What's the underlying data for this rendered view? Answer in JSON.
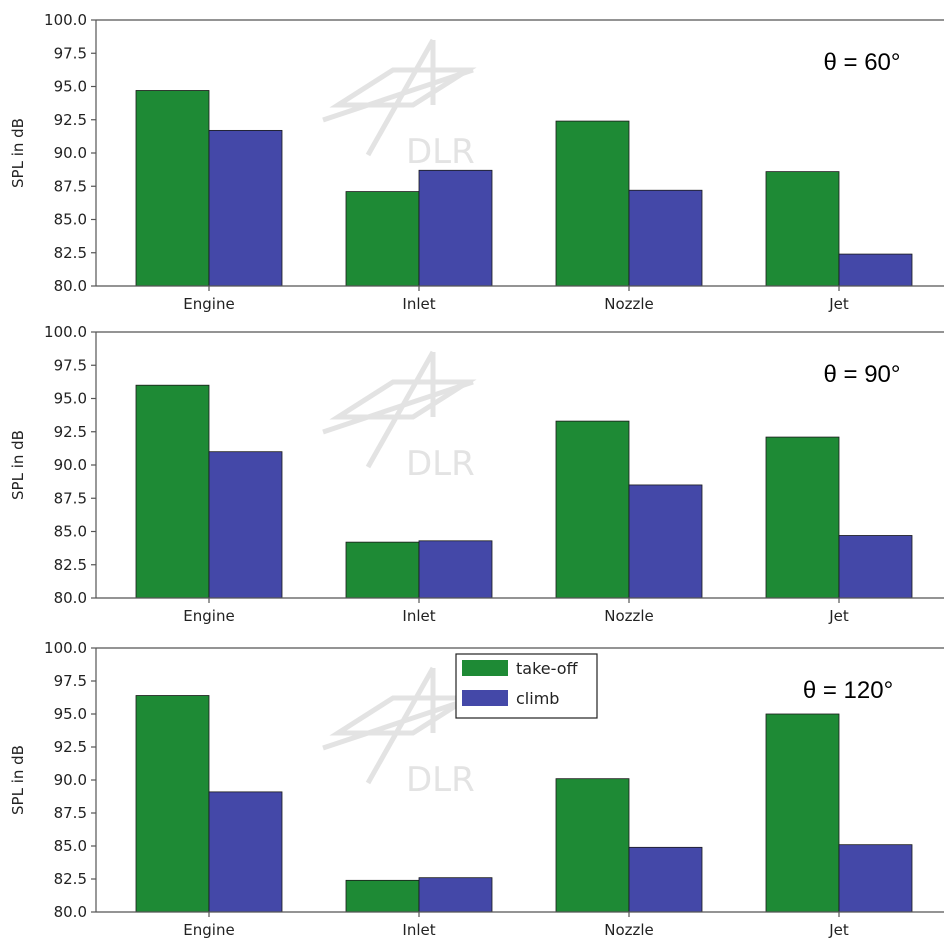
{
  "chart_data": [
    {
      "type": "bar",
      "annotation": "θ =  60°",
      "ylabel": "SPL in dB",
      "categories": [
        "Engine",
        "Inlet",
        "Nozzle",
        "Jet"
      ],
      "ylim": [
        80.0,
        100.0
      ],
      "yticks": [
        "80.0",
        "82.5",
        "85.0",
        "87.5",
        "90.0",
        "92.5",
        "95.0",
        "97.5",
        "100.0"
      ],
      "series": [
        {
          "name": "take-off",
          "values": [
            94.7,
            87.1,
            92.4,
            88.6
          ]
        },
        {
          "name": "climb",
          "values": [
            91.7,
            88.7,
            87.2,
            82.4
          ]
        }
      ],
      "watermark": "DLR",
      "legend": null
    },
    {
      "type": "bar",
      "annotation": "θ =  90°",
      "ylabel": "SPL in dB",
      "categories": [
        "Engine",
        "Inlet",
        "Nozzle",
        "Jet"
      ],
      "ylim": [
        80.0,
        100.0
      ],
      "yticks": [
        "80.0",
        "82.5",
        "85.0",
        "87.5",
        "90.0",
        "92.5",
        "95.0",
        "97.5",
        "100.0"
      ],
      "series": [
        {
          "name": "take-off",
          "values": [
            96.0,
            84.2,
            93.3,
            92.1
          ]
        },
        {
          "name": "climb",
          "values": [
            91.0,
            84.3,
            88.5,
            84.7
          ]
        }
      ],
      "watermark": "DLR",
      "legend": null
    },
    {
      "type": "bar",
      "annotation": "θ =  120°",
      "ylabel": "SPL in dB",
      "categories": [
        "Engine",
        "Inlet",
        "Nozzle",
        "Jet"
      ],
      "ylim": [
        80.0,
        100.0
      ],
      "yticks": [
        "80.0",
        "82.5",
        "85.0",
        "87.5",
        "90.0",
        "92.5",
        "95.0",
        "97.5",
        "100.0"
      ],
      "series": [
        {
          "name": "take-off",
          "values": [
            96.4,
            82.4,
            90.1,
            95.0
          ]
        },
        {
          "name": "climb",
          "values": [
            89.1,
            82.6,
            84.9,
            85.1
          ]
        }
      ],
      "watermark": "DLR",
      "legend": "upper-center"
    }
  ],
  "colors": {
    "take-off": "#1e8a35",
    "climb": "#4448a8",
    "axis": "#555555",
    "watermark": "#e3e3e3"
  }
}
